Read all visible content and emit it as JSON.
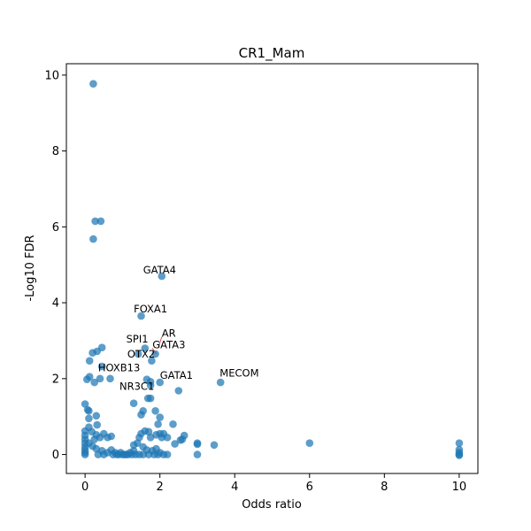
{
  "chart_data": {
    "type": "scatter",
    "title": "CR1_Mam",
    "xlabel": "Odds ratio",
    "ylabel": "-Log10 FDR",
    "xlim": [
      -0.5,
      10.5
    ],
    "ylim": [
      -0.5,
      10.3
    ],
    "xticks": [
      0,
      2,
      4,
      6,
      8,
      10
    ],
    "yticks": [
      0,
      2,
      4,
      6,
      8,
      10
    ],
    "grid": false,
    "point_color": "#1f77b4",
    "leader_color": "#d62728",
    "annotations": [
      {
        "label": "GATA4",
        "x": 2.05,
        "y": 4.7,
        "tx": 1.55,
        "ty": 4.77
      },
      {
        "label": "FOXA1",
        "x": 1.5,
        "y": 3.65,
        "tx": 1.3,
        "ty": 3.75
      },
      {
        "label": "AR",
        "x": 1.95,
        "y": 2.8,
        "tx": 2.05,
        "ty": 3.1
      },
      {
        "label": "SPI1",
        "x": 1.6,
        "y": 2.72,
        "tx": 1.1,
        "ty": 2.95
      },
      {
        "label": "GATA3",
        "x": 1.9,
        "y": 2.65,
        "tx": 1.8,
        "ty": 2.8
      },
      {
        "label": "OTX2",
        "x": 1.8,
        "y": 2.5,
        "tx": 1.13,
        "ty": 2.55
      },
      {
        "label": "HOXB13",
        "x": 1.1,
        "y": 2.1,
        "tx": 0.35,
        "ty": 2.2
      },
      {
        "label": "GATA1",
        "x": 2.0,
        "y": 1.9,
        "tx": 2.0,
        "ty": 2.0
      },
      {
        "label": "MECOM",
        "x": 3.6,
        "y": 1.9,
        "tx": 3.6,
        "ty": 2.05
      },
      {
        "label": "NR3C1",
        "x": 1.3,
        "y": 1.65,
        "tx": 0.92,
        "ty": 1.7
      }
    ],
    "points": [
      [
        0.22,
        9.77
      ],
      [
        0.27,
        6.15
      ],
      [
        0.42,
        6.15
      ],
      [
        0.22,
        5.68
      ],
      [
        2.05,
        4.7
      ],
      [
        1.5,
        3.65
      ],
      [
        0.45,
        2.82
      ],
      [
        0.2,
        2.68
      ],
      [
        0.32,
        2.72
      ],
      [
        0.12,
        2.47
      ],
      [
        1.6,
        2.8
      ],
      [
        1.42,
        2.65
      ],
      [
        1.88,
        2.65
      ],
      [
        1.78,
        2.47
      ],
      [
        0.45,
        2.32
      ],
      [
        0.12,
        2.05
      ],
      [
        0.05,
        1.98
      ],
      [
        0.25,
        1.9
      ],
      [
        0.4,
        2.0
      ],
      [
        0.67,
        2.0
      ],
      [
        1.65,
        1.98
      ],
      [
        1.75,
        1.92
      ],
      [
        2.0,
        1.9
      ],
      [
        3.62,
        1.9
      ],
      [
        2.5,
        1.68
      ],
      [
        1.75,
        1.82
      ],
      [
        1.68,
        1.48
      ],
      [
        1.75,
        1.48
      ],
      [
        1.3,
        1.35
      ],
      [
        0.0,
        1.33
      ],
      [
        0.07,
        1.18
      ],
      [
        0.1,
        1.15
      ],
      [
        1.55,
        1.15
      ],
      [
        1.5,
        1.05
      ],
      [
        1.88,
        1.15
      ],
      [
        2.0,
        0.98
      ],
      [
        0.3,
        1.02
      ],
      [
        0.1,
        0.95
      ],
      [
        0.32,
        0.78
      ],
      [
        0.0,
        0.62
      ],
      [
        0.0,
        0.5
      ],
      [
        0.0,
        0.4
      ],
      [
        0.0,
        0.3
      ],
      [
        0.0,
        0.2
      ],
      [
        0.0,
        0.12
      ],
      [
        0.0,
        0.05
      ],
      [
        0.0,
        0.0
      ],
      [
        0.1,
        0.72
      ],
      [
        0.18,
        0.6
      ],
      [
        0.3,
        0.52
      ],
      [
        0.25,
        0.4
      ],
      [
        0.4,
        0.45
      ],
      [
        0.5,
        0.55
      ],
      [
        0.6,
        0.45
      ],
      [
        0.7,
        0.48
      ],
      [
        0.1,
        0.3
      ],
      [
        0.2,
        0.22
      ],
      [
        0.3,
        0.15
      ],
      [
        0.45,
        0.1
      ],
      [
        0.6,
        0.05
      ],
      [
        0.7,
        0.12
      ],
      [
        0.8,
        0.05
      ],
      [
        0.9,
        0.0
      ],
      [
        1.0,
        0.0
      ],
      [
        1.1,
        0.0
      ],
      [
        1.2,
        0.05
      ],
      [
        1.3,
        0.1
      ],
      [
        0.35,
        0.0
      ],
      [
        0.5,
        0.0
      ],
      [
        0.75,
        0.0
      ],
      [
        0.85,
        0.0
      ],
      [
        0.95,
        0.05
      ],
      [
        1.05,
        0.0
      ],
      [
        1.15,
        0.0
      ],
      [
        1.25,
        0.0
      ],
      [
        1.35,
        0.0
      ],
      [
        1.3,
        0.25
      ],
      [
        1.4,
        0.3
      ],
      [
        1.45,
        0.45
      ],
      [
        1.5,
        0.55
      ],
      [
        1.6,
        0.62
      ],
      [
        1.7,
        0.6
      ],
      [
        1.75,
        0.45
      ],
      [
        1.55,
        0.2
      ],
      [
        1.65,
        0.12
      ],
      [
        1.8,
        0.1
      ],
      [
        1.9,
        0.52
      ],
      [
        1.95,
        0.8
      ],
      [
        2.0,
        0.55
      ],
      [
        2.05,
        0.45
      ],
      [
        2.1,
        0.55
      ],
      [
        2.2,
        0.45
      ],
      [
        2.35,
        0.8
      ],
      [
        2.4,
        0.28
      ],
      [
        2.55,
        0.38
      ],
      [
        2.6,
        0.4
      ],
      [
        2.65,
        0.5
      ],
      [
        1.9,
        0.15
      ],
      [
        2.0,
        0.05
      ],
      [
        2.1,
        0.0
      ],
      [
        2.2,
        0.0
      ],
      [
        1.45,
        0.0
      ],
      [
        1.55,
        0.0
      ],
      [
        1.7,
        0.0
      ],
      [
        1.85,
        0.0
      ],
      [
        1.95,
        0.0
      ],
      [
        3.0,
        0.3
      ],
      [
        3.0,
        0.27
      ],
      [
        3.0,
        0.0
      ],
      [
        3.45,
        0.25
      ],
      [
        6.0,
        0.3
      ],
      [
        10.0,
        0.3
      ],
      [
        10.0,
        0.13
      ],
      [
        10.0,
        0.05
      ],
      [
        10.0,
        0.0
      ],
      [
        10.0,
        -0.02
      ]
    ]
  }
}
